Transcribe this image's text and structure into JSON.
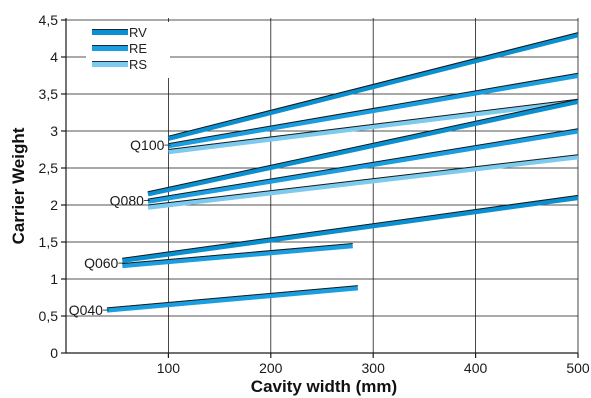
{
  "chart_data": {
    "type": "line",
    "title": "",
    "xlabel": "Cavity width (mm)",
    "ylabel": "Carrier Weight",
    "xlim": [
      0,
      500
    ],
    "ylim": [
      0,
      4.5
    ],
    "x_ticks": [
      "100",
      "200",
      "300",
      "400",
      "500"
    ],
    "y_ticks": [
      "0",
      "0,5",
      "1",
      "1,5",
      "2",
      "2,5",
      "3",
      "3,5",
      "4",
      "4,5"
    ],
    "grid": true,
    "legend_position": "top-left",
    "legend": [
      {
        "name": "RV",
        "color": "#0a8fd0"
      },
      {
        "name": "RE",
        "color": "#1a9ee0"
      },
      {
        "name": "RS",
        "color": "#7ccbee"
      }
    ],
    "groups": [
      {
        "label": "Q100",
        "lines": [
          {
            "type": "RV",
            "x": [
              100,
              500
            ],
            "y": [
              2.9,
              4.3
            ]
          },
          {
            "type": "RE",
            "x": [
              100,
              500
            ],
            "y": [
              2.8,
              3.75
            ]
          },
          {
            "type": "RS",
            "x": [
              100,
              500
            ],
            "y": [
              2.72,
              3.4
            ]
          }
        ]
      },
      {
        "label": "Q080",
        "lines": [
          {
            "type": "RV",
            "x": [
              80,
              500
            ],
            "y": [
              2.15,
              3.4
            ]
          },
          {
            "type": "RE",
            "x": [
              80,
              500
            ],
            "y": [
              2.05,
              3.0
            ]
          },
          {
            "type": "RS",
            "x": [
              80,
              500
            ],
            "y": [
              1.97,
              2.65
            ]
          }
        ]
      },
      {
        "label": "Q060",
        "lines": [
          {
            "type": "RV",
            "x": [
              55,
              500
            ],
            "y": [
              1.25,
              2.1
            ]
          },
          {
            "type": "RE",
            "x": [
              55,
              280
            ],
            "y": [
              1.18,
              1.45
            ]
          }
        ]
      },
      {
        "label": "Q040",
        "lines": [
          {
            "type": "RE",
            "x": [
              40,
              285
            ],
            "y": [
              0.58,
              0.88
            ]
          }
        ]
      }
    ]
  }
}
